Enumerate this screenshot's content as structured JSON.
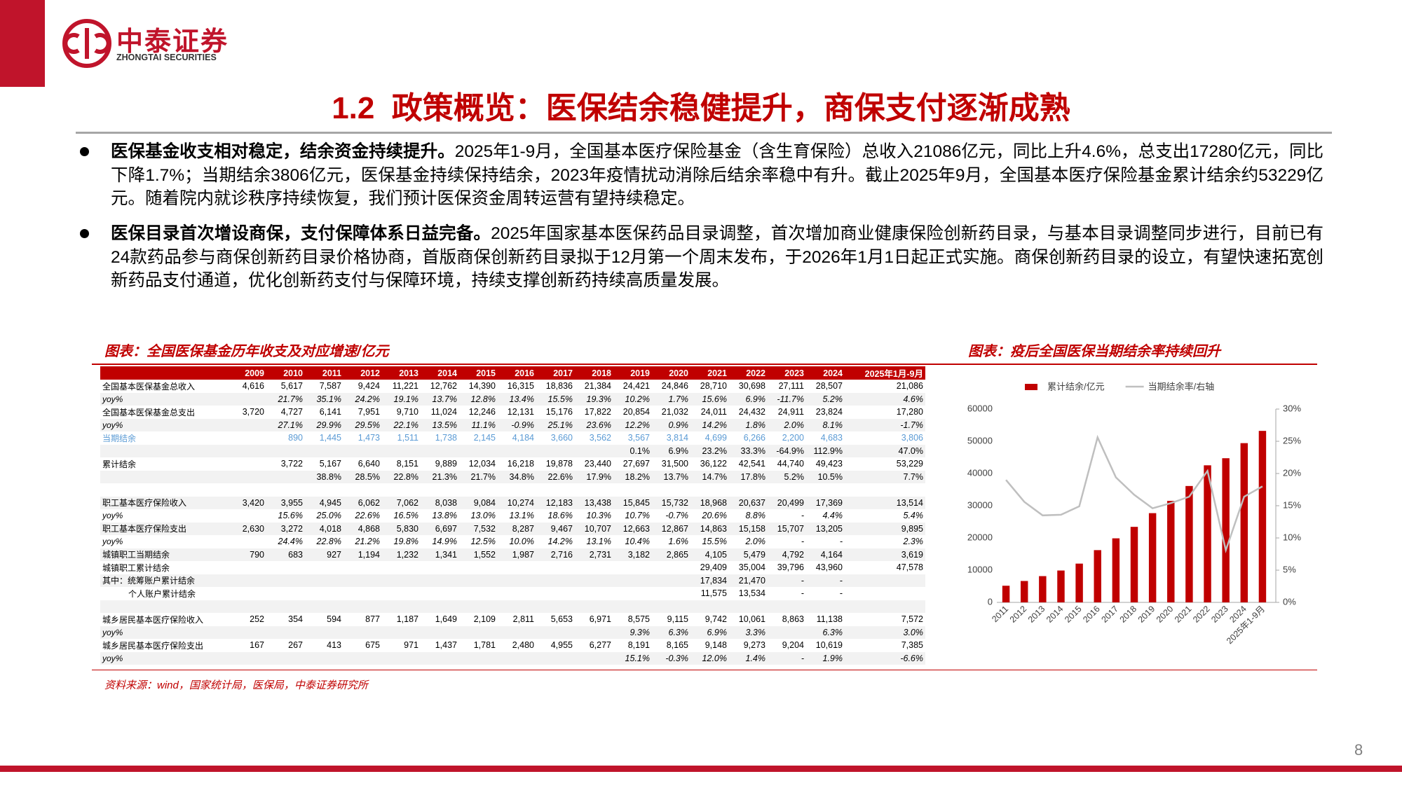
{
  "header": {
    "logo_cn": "中泰证券",
    "logo_en": "ZHONGTAI SECURITIES",
    "title": "1.2  政策概览：医保结余稳健提升，商保支付逐渐成熟"
  },
  "bullets": [
    {
      "lead": "医保基金收支相对稳定，结余资金持续提升。",
      "text": "2025年1-9月，全国基本医疗保险基金（含生育保险）总收入21086亿元，同比上升4.6%，总支出17280亿元，同比下降1.7%；当期结余3806亿元，医保基金持续保持结余，2023年疫情扰动消除后结余率稳中有升。截止2025年9月，全国基本医疗保险基金累计结余约53229亿元。随着院内就诊秩序持续恢复，我们预计医保资金周转运营有望持续稳定。"
    },
    {
      "lead": "医保目录首次增设商保，支付保障体系日益完备。",
      "text": "2025年国家基本医保药品目录调整，首次增加商业健康保险创新药目录，与基本目录调整同步进行，目前已有24款药品参与商保创新药目录价格协商，首版商保创新药目录拟于12月第一个周末发布，于2026年1月1日起正式实施。商保创新药目录的设立，有望快速拓宽创新药品支付通道，优化创新药支付与保障环境，持续支撑创新药持续高质量发展。"
    }
  ],
  "table": {
    "caption": "图表：全国医保基金历年收支及对应增速/亿元",
    "columns": [
      "2009",
      "2010",
      "2011",
      "2012",
      "2013",
      "2014",
      "2015",
      "2016",
      "2017",
      "2018",
      "2019",
      "2020",
      "2021",
      "2022",
      "2023",
      "2024",
      "2025年1月-9月"
    ],
    "rows": [
      {
        "label": "全国基本医保基金总收入",
        "cells": [
          "4,616",
          "5,617",
          "7,587",
          "9,424",
          "11,221",
          "12,762",
          "14,390",
          "16,315",
          "18,836",
          "21,384",
          "24,421",
          "24,846",
          "28,710",
          "30,698",
          "27,111",
          "28,507",
          "21,086"
        ]
      },
      {
        "label": "yoy%",
        "cells": [
          null,
          "21.7%",
          "35.1%",
          "24.2%",
          "19.1%",
          "13.7%",
          "12.8%",
          "13.4%",
          "15.5%",
          "19.3%",
          "10.2%",
          "1.7%",
          "15.6%",
          "6.9%",
          "-11.7%",
          "5.2%",
          "4.6%"
        ]
      },
      {
        "label": "全国基本医保基金总支出",
        "cells": [
          "3,720",
          "4,727",
          "6,141",
          "7,951",
          "9,710",
          "11,024",
          "12,246",
          "12,131",
          "15,176",
          "17,822",
          "20,854",
          "21,032",
          "24,011",
          "24,432",
          "24,911",
          "23,824",
          "17,280"
        ]
      },
      {
        "label": "yoy%",
        "cells": [
          null,
          "27.1%",
          "29.9%",
          "29.5%",
          "22.1%",
          "13.5%",
          "11.1%",
          "-0.9%",
          "25.1%",
          "23.6%",
          "12.2%",
          "0.9%",
          "14.2%",
          "1.8%",
          "2.0%",
          "8.1%",
          "-1.7%"
        ]
      },
      {
        "label": "当期结余",
        "cells": [
          null,
          "890",
          "1,445",
          "1,473",
          "1,511",
          "1,738",
          "2,145",
          "4,184",
          "3,660",
          "3,562",
          "3,567",
          "3,814",
          "4,699",
          "6,266",
          "2,200",
          "4,683",
          "3,806"
        ]
      },
      {
        "label": null,
        "cells": [
          null,
          null,
          null,
          null,
          null,
          null,
          null,
          null,
          null,
          null,
          "0.1%",
          "6.9%",
          "23.2%",
          "33.3%",
          "-64.9%",
          "112.9%",
          "47.0%"
        ]
      },
      {
        "label": "累计结余",
        "cells": [
          null,
          "3,722",
          "5,167",
          "6,640",
          "8,151",
          "9,889",
          "12,034",
          "16,218",
          "19,878",
          "23,440",
          "27,697",
          "31,500",
          "36,122",
          "42,541",
          "44,740",
          "49,423",
          "53,229"
        ]
      },
      {
        "label": null,
        "cells": [
          null,
          null,
          "38.8%",
          "28.5%",
          "22.8%",
          "21.3%",
          "21.7%",
          "34.8%",
          "22.6%",
          "17.9%",
          "18.2%",
          "13.7%",
          "14.7%",
          "17.8%",
          "5.2%",
          "10.5%",
          "7.7%"
        ]
      },
      {
        "label": null,
        "cells": []
      },
      {
        "label": "职工基本医疗保险收入",
        "cells": [
          "3,420",
          "3,955",
          "4,945",
          "6,062",
          "7,062",
          "8,038",
          "9,084",
          "10,274",
          "12,183",
          "13,438",
          "15,845",
          "15,732",
          "18,968",
          "20,637",
          "20,499",
          "17,369",
          "13,514"
        ]
      },
      {
        "label": "yoy%",
        "cells": [
          null,
          "15.6%",
          "25.0%",
          "22.6%",
          "16.5%",
          "13.8%",
          "13.0%",
          "13.1%",
          "18.6%",
          "10.3%",
          "10.7%",
          "-0.7%",
          "20.6%",
          "8.8%",
          "-",
          "4.4%",
          "5.4%"
        ]
      },
      {
        "label": "职工基本医疗保险支出",
        "cells": [
          "2,630",
          "3,272",
          "4,018",
          "4,868",
          "5,830",
          "6,697",
          "7,532",
          "8,287",
          "9,467",
          "10,707",
          "12,663",
          "12,867",
          "14,863",
          "15,158",
          "15,707",
          "13,205",
          "9,895"
        ]
      },
      {
        "label": "yoy%",
        "cells": [
          null,
          "24.4%",
          "22.8%",
          "21.2%",
          "19.8%",
          "14.9%",
          "12.5%",
          "10.0%",
          "14.2%",
          "13.1%",
          "10.4%",
          "1.6%",
          "15.5%",
          "2.0%",
          "-",
          "-",
          "2.3%"
        ]
      },
      {
        "label": "城镇职工当期结余",
        "cells": [
          "790",
          "683",
          "927",
          "1,194",
          "1,232",
          "1,341",
          "1,552",
          "1,987",
          "2,716",
          "2,731",
          "3,182",
          "2,865",
          "4,105",
          "5,479",
          "4,792",
          "4,164",
          "3,619"
        ]
      },
      {
        "label": "城镇职工累计结余",
        "cells": [
          null,
          null,
          null,
          null,
          null,
          null,
          null,
          null,
          null,
          null,
          null,
          null,
          "29,409",
          "35,004",
          "39,796",
          "43,960",
          "47,578"
        ]
      },
      {
        "label": "其中：统筹账户累计结余",
        "cells": [
          null,
          null,
          null,
          null,
          null,
          null,
          null,
          null,
          null,
          null,
          null,
          null,
          "17,834",
          "21,470",
          "-",
          "-",
          null
        ]
      },
      {
        "label": "个人账户累计结余",
        "cells": [
          null,
          null,
          null,
          null,
          null,
          null,
          null,
          null,
          null,
          null,
          null,
          null,
          "11,575",
          "13,534",
          "-",
          "-",
          null
        ]
      },
      {
        "label": null,
        "cells": []
      },
      {
        "label": "城乡居民基本医疗保险收入",
        "cells": [
          "252",
          "354",
          "594",
          "877",
          "1,187",
          "1,649",
          "2,109",
          "2,811",
          "5,653",
          "6,971",
          "8,575",
          "9,115",
          "9,742",
          "10,061",
          "8,863",
          "11,138",
          "7,572"
        ]
      },
      {
        "label": "yoy%",
        "cells": [
          null,
          null,
          null,
          null,
          null,
          null,
          null,
          null,
          null,
          null,
          "9.3%",
          "6.3%",
          "6.9%",
          "3.3%",
          null,
          "6.3%",
          "3.0%"
        ]
      },
      {
        "label": "城乡居民基本医疗保险支出",
        "cells": [
          "167",
          "267",
          "413",
          "675",
          "971",
          "1,437",
          "1,781",
          "2,480",
          "4,955",
          "6,277",
          "8,191",
          "8,165",
          "9,148",
          "9,273",
          "9,204",
          "10,619",
          "7,385"
        ]
      },
      {
        "label": "yoy%",
        "cells": [
          null,
          null,
          null,
          null,
          null,
          null,
          null,
          null,
          null,
          null,
          "15.1%",
          "-0.3%",
          "12.0%",
          "1.4%",
          "-",
          "1.9%",
          "-6.6%"
        ]
      }
    ]
  },
  "chart_data": {
    "type": "bar",
    "title": "图表：疫后全国医保当期结余率持续回升",
    "categories": [
      "2011",
      "2012",
      "2013",
      "2014",
      "2015",
      "2016",
      "2017",
      "2018",
      "2019",
      "2020",
      "2021",
      "2022",
      "2023",
      "2024",
      "2025年1-9月"
    ],
    "series": [
      {
        "name": "累计结余/亿元",
        "color": "#c00000",
        "type": "bar",
        "values": [
          5167,
          6640,
          8151,
          9889,
          12034,
          16218,
          19878,
          23440,
          27697,
          31500,
          36122,
          42541,
          44740,
          49423,
          53229
        ]
      },
      {
        "name": "当期结余率/右轴",
        "color": "#bfbfbf",
        "type": "line",
        "axis": "y2",
        "values": [
          19.0,
          15.6,
          13.5,
          13.6,
          14.9,
          25.6,
          19.4,
          16.7,
          14.6,
          15.4,
          16.4,
          20.4,
          8.1,
          16.4,
          18.0
        ]
      }
    ],
    "ylim": [
      0,
      60000
    ],
    "yticks": [
      0,
      10000,
      20000,
      30000,
      40000,
      50000,
      60000
    ],
    "y2lim": [
      0,
      30
    ],
    "y2ticks": [
      {
        "value": 0,
        "label": "0%"
      },
      {
        "value": 5,
        "label": "5%"
      },
      {
        "value": 10,
        "label": "10%"
      },
      {
        "value": 15,
        "label": "15%"
      },
      {
        "value": 20,
        "label": "20%"
      },
      {
        "value": 25,
        "label": "25%"
      },
      {
        "value": 30,
        "label": "30%"
      }
    ],
    "legend": "top"
  },
  "source": "资料来源：wind，国家统计局，医保局，中泰证券研究所",
  "page_number": "8"
}
